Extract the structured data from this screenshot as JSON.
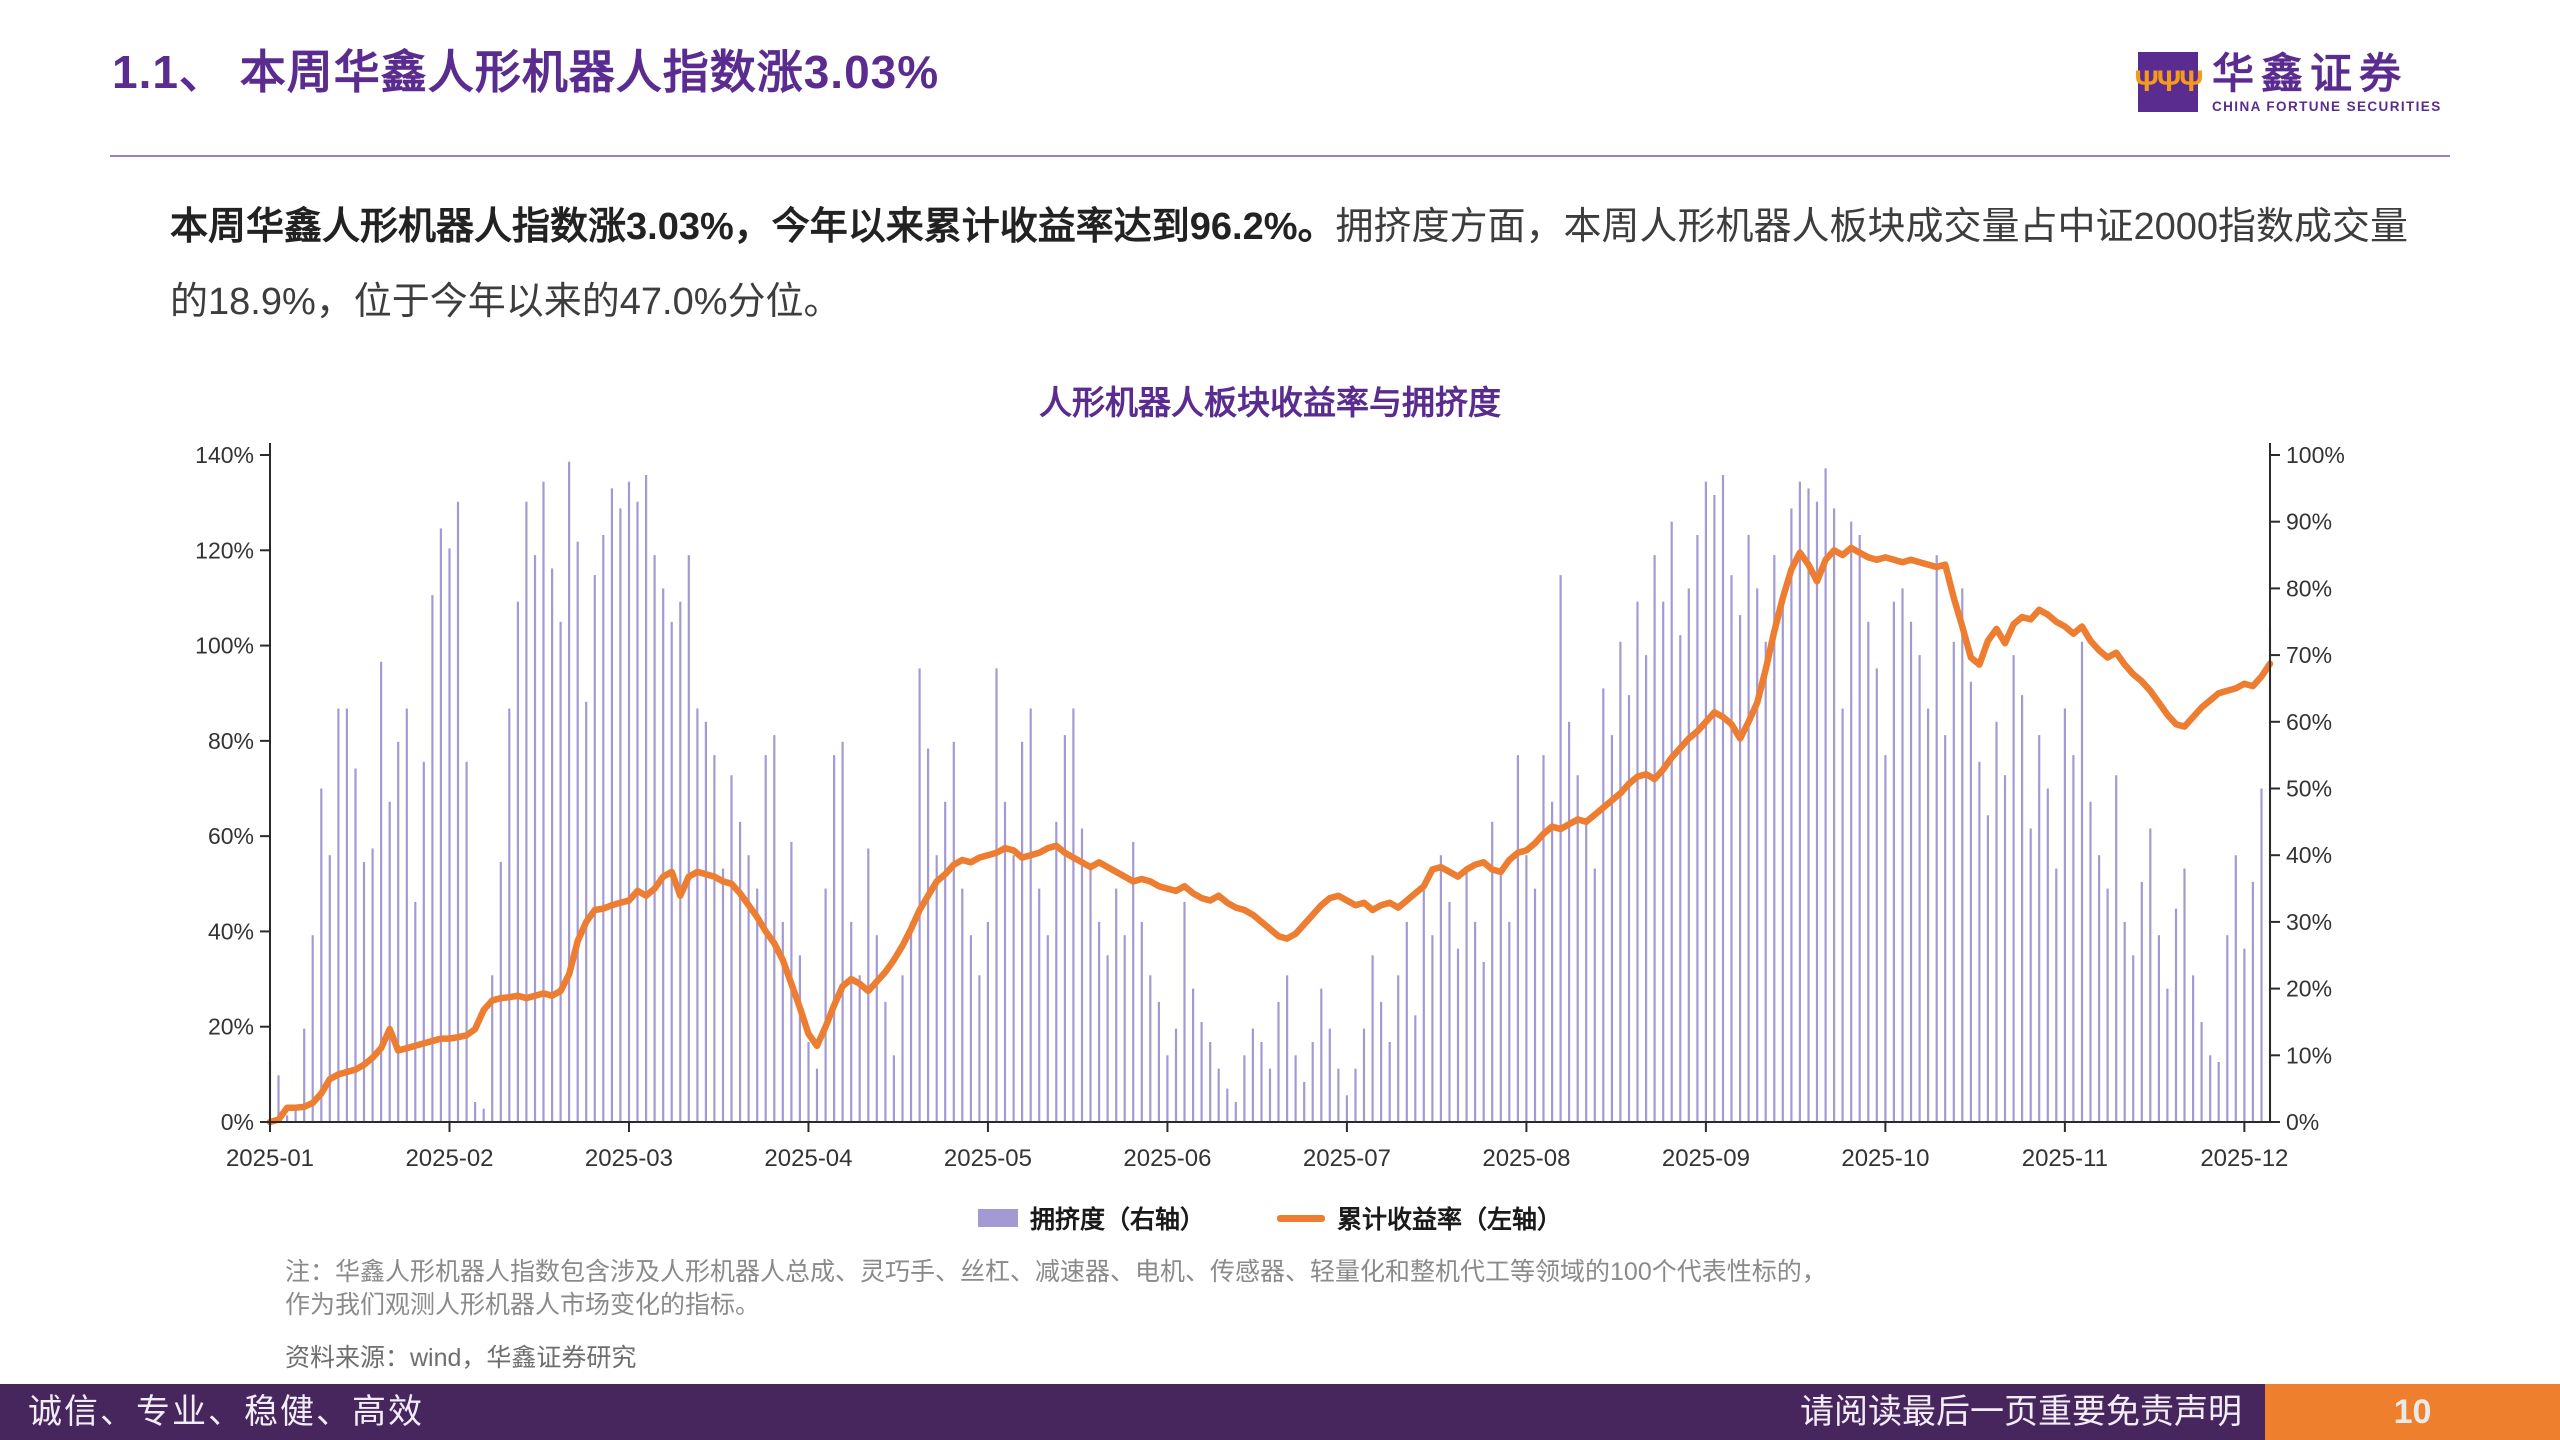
{
  "header": {
    "title": "1.1、 本周华鑫人形机器人指数涨3.03%",
    "logo": {
      "mark": "huaxin-trident-icon",
      "cn": "华鑫证券",
      "en": "CHINA FORTUNE SECURITIES"
    }
  },
  "intro": {
    "bold": "本周华鑫人形机器人指数涨3.03%，今年以来累计收益率达到96.2%。",
    "regular": "拥挤度方面，本周人形机器人板块成交量占中证2000指数成交量的18.9%，位于今年以来的47.0%分位。"
  },
  "chart_data": {
    "type": "bar+line",
    "title": "人形机器人板块收益率与拥挤度",
    "x_ticks": [
      "2025-01",
      "2025-02",
      "2025-03",
      "2025-04",
      "2025-05",
      "2025-06",
      "2025-07",
      "2025-08",
      "2025-09",
      "2025-10",
      "2025-11",
      "2025-12"
    ],
    "points_per_month": 21,
    "grid": false,
    "legend_position": "bottom",
    "left_axis": {
      "label": "累计收益率",
      "min": 0,
      "max": 140,
      "step": 20,
      "unit": "%"
    },
    "right_axis": {
      "label": "拥挤度",
      "min": 0,
      "max": 100,
      "step": 10,
      "unit": "%"
    },
    "series": [
      {
        "name": "拥挤度（右轴）",
        "type": "bar",
        "axis": "right",
        "color": "#a49ad3",
        "values": [
          9,
          7,
          1,
          2,
          14,
          28,
          50,
          40,
          62,
          62,
          53,
          39,
          41,
          69,
          48,
          57,
          62,
          33,
          54,
          79,
          89,
          86,
          93,
          54,
          3,
          2,
          22,
          39,
          62,
          78,
          93,
          85,
          96,
          83,
          75,
          99,
          87,
          63,
          82,
          88,
          95,
          92,
          96,
          93,
          97,
          85,
          80,
          75,
          78,
          85,
          62,
          60,
          55,
          38,
          52,
          45,
          40,
          35,
          55,
          58,
          30,
          42,
          25,
          12,
          8,
          35,
          55,
          57,
          30,
          22,
          41,
          28,
          18,
          10,
          22,
          30,
          68,
          56,
          40,
          48,
          57,
          35,
          28,
          22,
          30,
          68,
          48,
          40,
          57,
          62,
          35,
          28,
          45,
          58,
          62,
          44,
          38,
          30,
          25,
          35,
          28,
          42,
          30,
          22,
          18,
          10,
          14,
          33,
          20,
          15,
          12,
          8,
          5,
          3,
          10,
          14,
          12,
          8,
          18,
          22,
          10,
          6,
          12,
          20,
          14,
          8,
          4,
          8,
          14,
          25,
          18,
          12,
          22,
          30,
          16,
          35,
          28,
          40,
          33,
          26,
          38,
          30,
          24,
          45,
          38,
          30,
          55,
          40,
          35,
          55,
          48,
          82,
          60,
          52,
          45,
          38,
          65,
          58,
          72,
          64,
          78,
          70,
          85,
          78,
          90,
          73,
          80,
          88,
          96,
          94,
          97,
          82,
          76,
          88,
          80,
          72,
          85,
          78,
          92,
          96,
          95,
          93,
          98,
          92,
          62,
          90,
          88,
          75,
          68,
          55,
          78,
          80,
          75,
          70,
          62,
          85,
          58,
          72,
          80,
          66,
          54,
          46,
          60,
          52,
          70,
          64,
          44,
          58,
          50,
          38,
          62,
          55,
          72,
          48,
          40,
          35,
          52,
          30,
          25,
          36,
          44,
          28,
          20,
          32,
          38,
          22,
          15,
          10,
          9,
          28,
          40,
          26,
          36,
          50,
          74
        ]
      },
      {
        "name": "累计收益率（左轴）",
        "type": "line",
        "axis": "left",
        "color": "#ed7d31",
        "values": [
          0,
          0.5,
          3,
          3,
          3.2,
          4,
          6,
          9,
          10,
          10.5,
          11,
          12,
          13.5,
          15.5,
          19.5,
          15,
          15.5,
          16,
          16.5,
          17,
          17.5,
          17.5,
          17.8,
          18.2,
          19.5,
          23.5,
          25.5,
          26,
          26.2,
          26.5,
          26,
          26.5,
          27,
          26.5,
          27.5,
          31,
          38,
          42,
          44.5,
          44.8,
          45.5,
          46,
          46.5,
          48.5,
          47.5,
          49,
          51.5,
          52.5,
          47.5,
          51.5,
          52.5,
          52,
          51.5,
          50.5,
          50,
          48,
          45.5,
          43,
          40,
          37.5,
          34,
          29,
          24,
          18.5,
          16,
          20,
          24.5,
          28.5,
          30,
          29,
          27.5,
          29.5,
          31.5,
          34,
          37,
          40.5,
          44.5,
          47.5,
          50.5,
          52,
          54,
          55,
          54.5,
          55.5,
          56,
          56.5,
          57.5,
          57,
          55.5,
          56,
          56.5,
          57.5,
          58,
          56.5,
          55.5,
          54.5,
          53.5,
          54.5,
          53.5,
          52.5,
          51.5,
          50.5,
          51,
          50.5,
          49.5,
          49,
          48.5,
          49.5,
          48,
          47,
          46.5,
          47.5,
          46,
          45,
          44.5,
          43.5,
          42,
          40.5,
          39,
          38.5,
          39.5,
          41.5,
          43.5,
          45.5,
          47,
          47.5,
          46.5,
          45.5,
          46,
          44.5,
          45.5,
          46,
          45,
          46.5,
          48,
          49.5,
          53,
          53.5,
          52.5,
          51.5,
          53,
          54,
          54.5,
          53,
          52.5,
          55,
          56.5,
          57,
          58.5,
          60.5,
          62,
          61.5,
          62.5,
          63.5,
          63,
          64.5,
          66,
          67.5,
          69,
          71,
          72.5,
          73,
          72,
          74,
          76.5,
          78.5,
          80.5,
          82,
          84,
          86,
          85,
          83.5,
          80.5,
          84,
          88,
          95,
          103,
          110,
          116,
          119.5,
          117,
          113.5,
          118,
          120,
          119,
          120.5,
          119.5,
          118.5,
          118,
          118.5,
          118,
          117.5,
          118,
          117.5,
          117,
          116.5,
          117,
          110,
          104,
          97.5,
          96,
          101,
          103.5,
          100.5,
          104.5,
          106,
          105.5,
          107.5,
          106.5,
          105,
          104,
          102.5,
          104,
          101,
          99,
          97.5,
          98.5,
          96,
          94,
          92.5,
          90.5,
          88,
          85.5,
          83.5,
          83,
          85,
          87,
          88.5,
          90,
          90.5,
          91,
          92,
          91.5,
          93.5,
          96.2
        ]
      }
    ]
  },
  "notes": {
    "line1": "注：华鑫人形机器人指数包含涉及人形机器人总成、灵巧手、丝杠、减速器、电机、传感器、轻量化和整机代工等领域的100个代表性标的，",
    "line2": "作为我们观测人形机器人市场变化的指标。",
    "source": "资料来源：wind，华鑫证券研究"
  },
  "footer": {
    "left": "诚信、专业、稳健、高效",
    "right": "请阅读最后一页重要免责声明",
    "page": "10"
  },
  "colors": {
    "brand_purple": "#5b2c8f",
    "footer_purple": "#46265c",
    "accent_orange": "#ed7d31",
    "bar_lavender": "#a49ad3"
  }
}
